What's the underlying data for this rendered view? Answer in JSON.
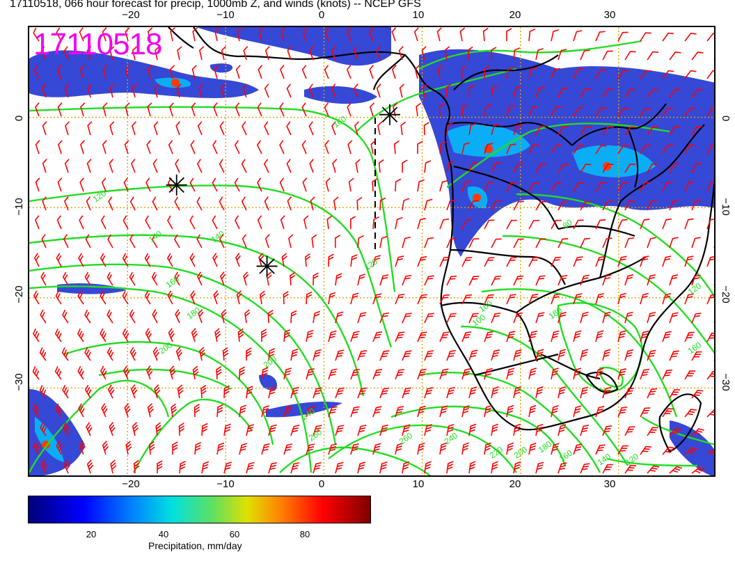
{
  "title": "17110518, 066 hour forecast for precip, 1000mb Z, and winds (knots) -- NCEP GFS",
  "stamp": "17110518",
  "axes": {
    "top_ticks": [
      "−20",
      "−10",
      "0",
      "10",
      "20",
      "30"
    ],
    "bottom_ticks": [
      "−20",
      "−10",
      "0",
      "10",
      "20",
      "30"
    ],
    "left_ticks": [
      "0",
      "−10",
      "−20",
      "−30"
    ],
    "right_ticks": [
      "0",
      "−10",
      "−20",
      "−30"
    ],
    "lon_range": [
      -30,
      40
    ],
    "lat_range": [
      -40,
      10
    ]
  },
  "contour_labels": [
    "160",
    "120",
    "140",
    "140",
    "160",
    "180",
    "200",
    "200",
    "240",
    "260",
    "260",
    "240",
    "220",
    "200",
    "180",
    "160",
    "140",
    "120",
    "100",
    "80",
    "120",
    "160",
    "180",
    "100",
    "120"
  ],
  "markers": [
    {
      "name": "storm-marker",
      "lon": -15.0,
      "lat": -7.5
    },
    {
      "name": "storm-marker",
      "lon": -5.8,
      "lat": -16.5
    },
    {
      "name": "storm-marker",
      "lon": 6.7,
      "lat": 0.3
    }
  ],
  "colorbar": {
    "ticks": [
      "20",
      "40",
      "60",
      "80"
    ],
    "label": "Precipitation, mm/day",
    "colors": [
      "#00007a",
      "#0000ff",
      "#0080ff",
      "#00e0e0",
      "#60e060",
      "#e0e000",
      "#ff8000",
      "#ff0000",
      "#800000"
    ]
  },
  "colors": {
    "contour": "#22dd22",
    "wind_barb": "#ff0000",
    "grid": "#e0a000",
    "coast": "#000000",
    "stamp": "#f000f0"
  }
}
